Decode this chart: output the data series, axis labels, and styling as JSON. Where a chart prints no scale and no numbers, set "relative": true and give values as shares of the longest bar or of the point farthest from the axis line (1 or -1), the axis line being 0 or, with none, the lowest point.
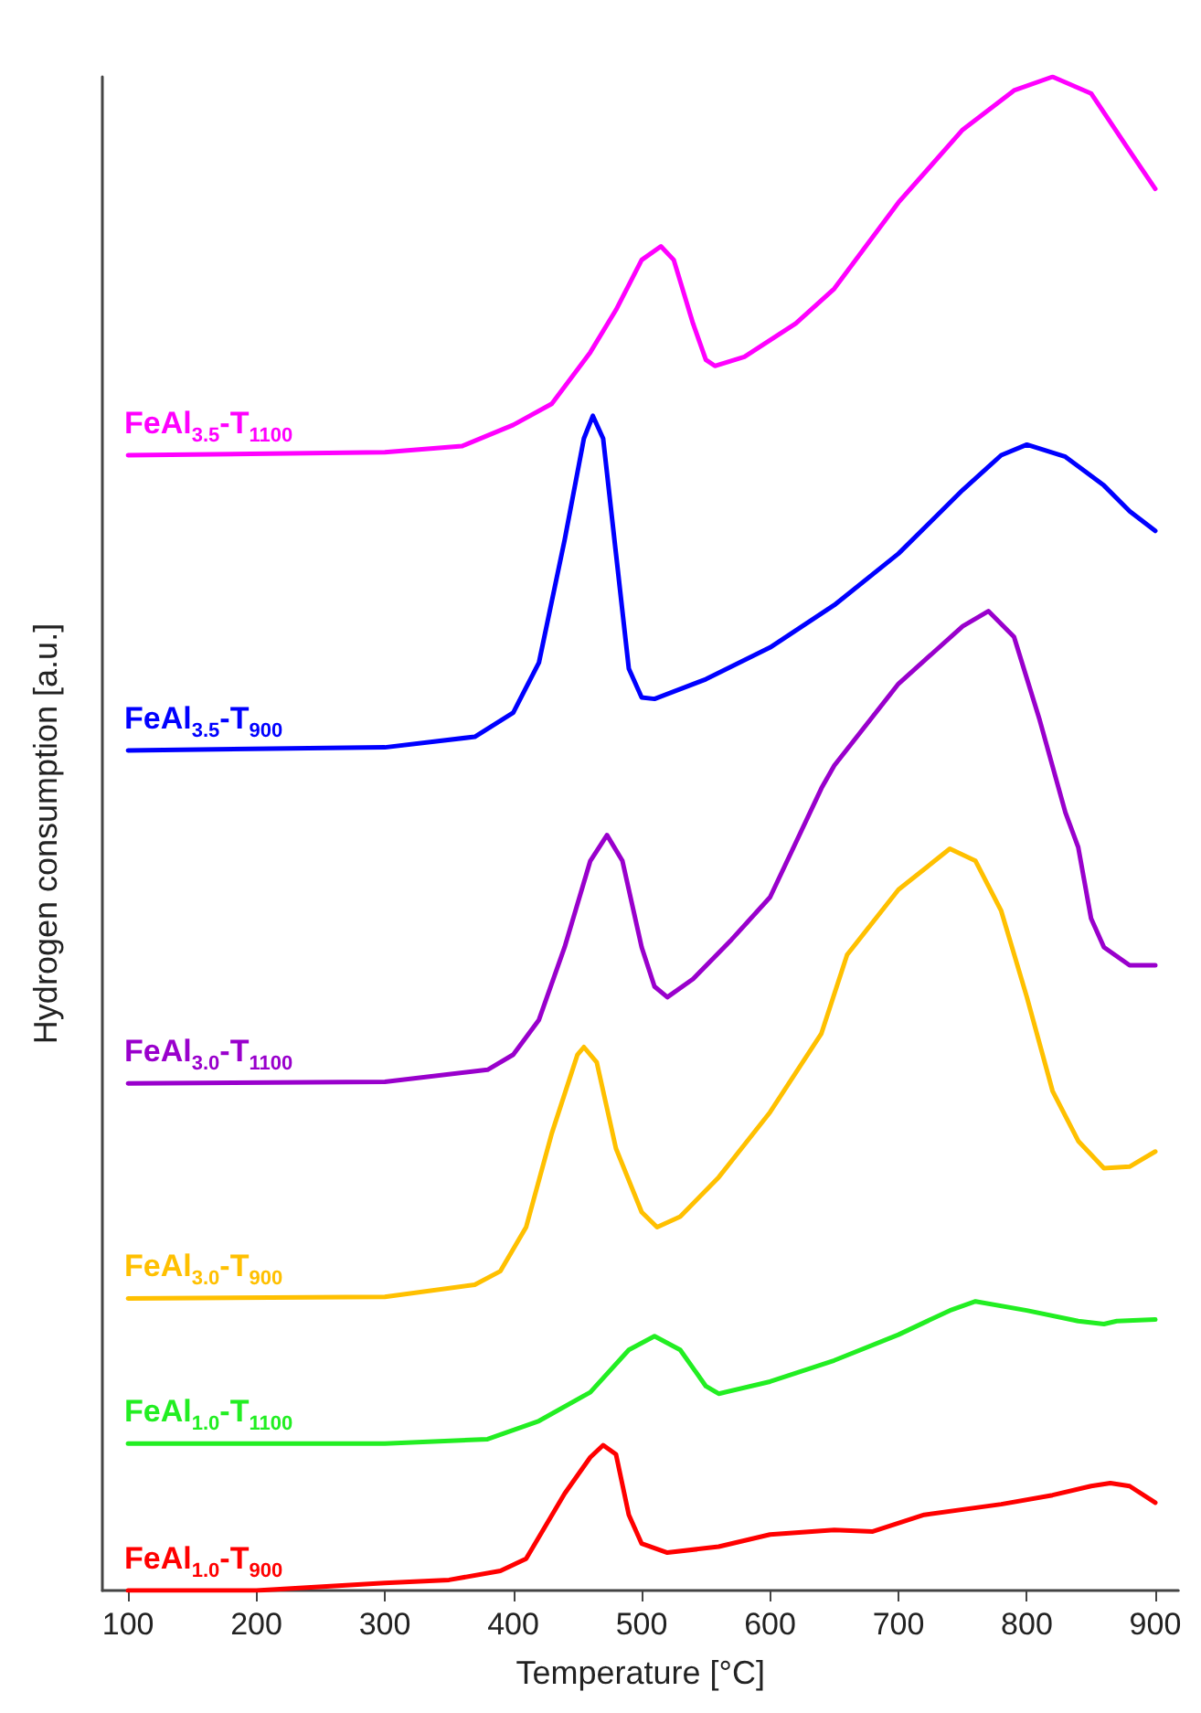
{
  "chart_data": {
    "type": "line",
    "xlabel": "Temperature [°C]",
    "ylabel": "Hydrogen consumption [a.u.]",
    "relative": true,
    "xlim": [
      80,
      918
    ],
    "xticks": [
      100,
      200,
      300,
      400,
      500,
      600,
      700,
      800,
      900
    ],
    "marker": "none",
    "line_style": "solid",
    "series": [
      {
        "name": "FeAl$_{1.0}$-T$_{900}$",
        "color": "#ff0000",
        "x": [
          100,
          200,
          300,
          350,
          390,
          410,
          440,
          460,
          470,
          480,
          490,
          500,
          520,
          560,
          600,
          650,
          680,
          720,
          780,
          820,
          850,
          865,
          880,
          900
        ],
        "values": [
          0,
          0,
          0.005,
          0.007,
          0.013,
          0.021,
          0.064,
          0.088,
          0.096,
          0.09,
          0.05,
          0.031,
          0.025,
          0.029,
          0.037,
          0.04,
          0.039,
          0.05,
          0.057,
          0.063,
          0.069,
          0.071,
          0.069,
          0.058
        ]
      },
      {
        "name": "FeAl$_{1.0}$-T$_{1100}$",
        "color": "#22ee22",
        "x": [
          100,
          300,
          380,
          420,
          460,
          490,
          510,
          530,
          550,
          560,
          600,
          650,
          700,
          740,
          760,
          800,
          840,
          860,
          870,
          900
        ],
        "values": [
          0.097,
          0.097,
          0.1,
          0.112,
          0.131,
          0.159,
          0.168,
          0.159,
          0.135,
          0.13,
          0.138,
          0.152,
          0.169,
          0.185,
          0.191,
          0.185,
          0.178,
          0.176,
          0.178,
          0.179
        ]
      },
      {
        "name": "FeAl$_{3.0}$-T$_{900}$",
        "color": "#ffc000",
        "x": [
          100,
          300,
          370,
          390,
          410,
          430,
          450,
          455,
          465,
          480,
          500,
          512,
          530,
          560,
          600,
          640,
          660,
          700,
          740,
          760,
          780,
          800,
          820,
          840,
          860,
          880,
          900
        ],
        "values": [
          0.193,
          0.194,
          0.202,
          0.211,
          0.24,
          0.302,
          0.354,
          0.359,
          0.349,
          0.292,
          0.25,
          0.24,
          0.247,
          0.273,
          0.316,
          0.368,
          0.42,
          0.463,
          0.49,
          0.482,
          0.449,
          0.392,
          0.33,
          0.297,
          0.279,
          0.28,
          0.29
        ]
      },
      {
        "name": "FeAl$_{3.0}$-T$_{1100}$",
        "color": "#9900cc",
        "x": [
          100,
          300,
          380,
          400,
          420,
          440,
          460,
          473,
          485,
          500,
          510,
          520,
          540,
          570,
          600,
          640,
          650,
          700,
          750,
          770,
          790,
          810,
          830,
          840,
          850,
          860,
          880,
          900
        ],
        "values": [
          0.335,
          0.336,
          0.344,
          0.354,
          0.377,
          0.425,
          0.482,
          0.499,
          0.482,
          0.425,
          0.399,
          0.392,
          0.404,
          0.43,
          0.458,
          0.53,
          0.545,
          0.599,
          0.637,
          0.647,
          0.63,
          0.575,
          0.514,
          0.491,
          0.444,
          0.425,
          0.413,
          0.413
        ]
      },
      {
        "name": "FeAl$_{3.5}$-T$_{900}$",
        "color": "#0000ff",
        "x": [
          100,
          300,
          370,
          400,
          420,
          440,
          455,
          462,
          470,
          480,
          490,
          500,
          510,
          550,
          600,
          650,
          700,
          750,
          780,
          800,
          830,
          860,
          880,
          900
        ],
        "values": [
          0.555,
          0.557,
          0.564,
          0.58,
          0.613,
          0.694,
          0.761,
          0.776,
          0.761,
          0.685,
          0.609,
          0.59,
          0.589,
          0.602,
          0.623,
          0.651,
          0.685,
          0.727,
          0.75,
          0.757,
          0.749,
          0.73,
          0.713,
          0.7
        ]
      },
      {
        "name": "FeAl$_{3.5}$-T$_{1100}$",
        "color": "#ff00ff",
        "x": [
          100,
          300,
          360,
          400,
          430,
          460,
          480,
          500,
          515,
          525,
          540,
          550,
          557,
          580,
          620,
          650,
          700,
          750,
          790,
          820,
          850,
          880,
          900
        ],
        "values": [
          0.75,
          0.752,
          0.756,
          0.77,
          0.784,
          0.818,
          0.846,
          0.879,
          0.888,
          0.879,
          0.837,
          0.813,
          0.809,
          0.815,
          0.837,
          0.86,
          0.917,
          0.965,
          0.991,
          1.0,
          0.989,
          0.951,
          0.926
        ]
      }
    ]
  }
}
